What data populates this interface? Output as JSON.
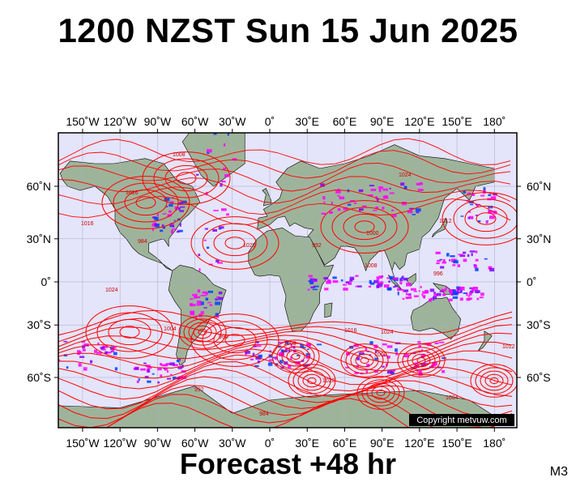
{
  "title": "1200 NZST Sun 15 Jun 2025",
  "footer": "Forecast +48 hr",
  "code": "M3",
  "copyright": "Copyright metvuw.com",
  "lon_labels": [
    "150˚W",
    "120˚W",
    "90˚W",
    "60˚W",
    "30˚W",
    "0˚",
    "30˚E",
    "60˚E",
    "90˚E",
    "120˚E",
    "150˚E",
    "180˚"
  ],
  "lat_labels": [
    "60˚N",
    "30˚N",
    "0˚",
    "30˚S",
    "60˚S"
  ],
  "isobar_labels": [
    "1008",
    "1016",
    "1024",
    "1012",
    "1000",
    "1020",
    "992",
    "984",
    "1004",
    "996"
  ],
  "colors": {
    "ocean": "#e4e4fa",
    "land": "#9eb49a",
    "isobar": "#ff0000",
    "rain_light": "#ff00ff",
    "rain_mid": "#8000ff",
    "rain_heavy": "#0040ff"
  }
}
